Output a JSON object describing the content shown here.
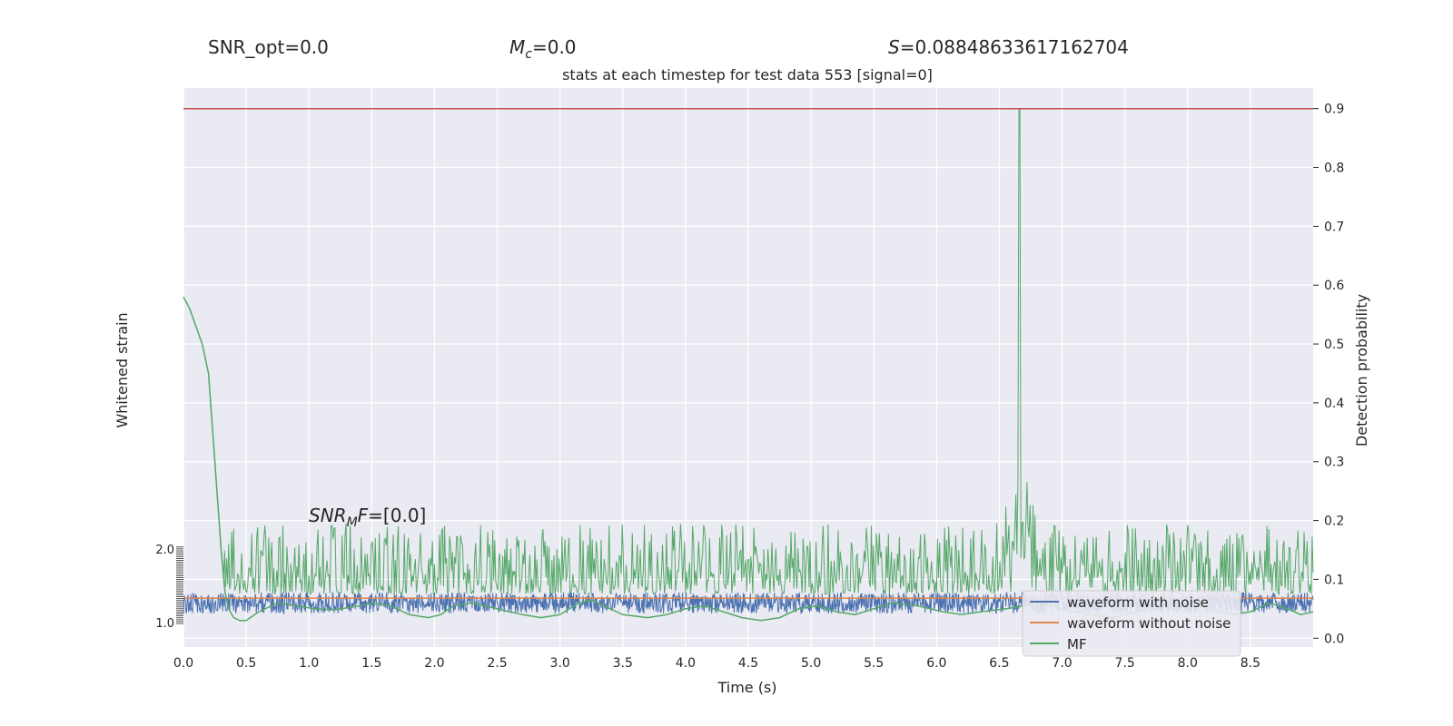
{
  "header": {
    "snr_opt": "SNR_opt=0.0",
    "mc_symbol": "M",
    "mc_sub": "c",
    "mc_value": "=0.0",
    "s_symbol": "S",
    "s_value": "=0.08848633617162704"
  },
  "colors": {
    "plot_bg": "#eaeaf2",
    "grid": "#ffffff",
    "noisy": "#4c72b0",
    "clean": "#dd8452",
    "mf": "#55a868",
    "threshold": "#c44e52",
    "text": "#262626"
  },
  "chart_data": {
    "type": "line",
    "title": "stats at each timestep for test data 553 [signal=0]",
    "xlabel": "Time (s)",
    "ylabel_left": "Whitened strain",
    "ylabel_right": "Detection probability",
    "xlim": [
      0.0,
      9.0
    ],
    "ylim_right": [
      -0.015,
      0.935
    ],
    "ylim_left_band": [
      -1.0,
      2.0
    ],
    "x_ticks": [
      "0.0",
      "0.5",
      "1.0",
      "1.5",
      "2.0",
      "2.5",
      "3.0",
      "3.5",
      "4.0",
      "4.5",
      "5.0",
      "5.5",
      "6.0",
      "6.5",
      "7.0",
      "7.5",
      "8.0",
      "8.5"
    ],
    "y_right_ticks": [
      "0.0",
      "0.1",
      "0.2",
      "0.3",
      "0.4",
      "0.5",
      "0.6",
      "0.7",
      "0.8",
      "0.9"
    ],
    "left_tick_labels": [
      "2.0",
      "1.0"
    ],
    "threshold": 0.9,
    "annotation": {
      "symbol": "SNR",
      "sub": "M",
      "tail": "F",
      "value": "=[0.0]"
    },
    "grid": true,
    "legend_position": "lower-right",
    "series": [
      {
        "name": "waveform with noise",
        "kind": "noise",
        "center": 0.06,
        "amplitude": 0.018,
        "sample_step": 0.004
      },
      {
        "name": "waveform without noise",
        "kind": "flat",
        "value": 0.068
      },
      {
        "name": "MF",
        "kind": "mf",
        "x": [
          0.0,
          0.05,
          0.1,
          0.15,
          0.2,
          0.25,
          0.3,
          0.33,
          0.36,
          0.4,
          0.45,
          0.5,
          0.6,
          0.75,
          0.9,
          1.05,
          1.2,
          1.4,
          1.5,
          1.65,
          1.8,
          1.95,
          2.05,
          2.15,
          2.3,
          2.5,
          2.7,
          2.85,
          3.0,
          3.15,
          3.25,
          3.35,
          3.5,
          3.7,
          3.85,
          4.0,
          4.15,
          4.3,
          4.45,
          4.6,
          4.75,
          4.9,
          5.05,
          5.2,
          5.35,
          5.5,
          5.65,
          5.85,
          6.05,
          6.2,
          6.35,
          6.55,
          6.7,
          6.85,
          7.0,
          7.2,
          7.4,
          7.6,
          7.8,
          8.0,
          8.15,
          8.35,
          8.5,
          8.65,
          8.8,
          8.9,
          9.0
        ],
        "y": [
          0.58,
          0.56,
          0.53,
          0.5,
          0.45,
          0.3,
          0.15,
          0.08,
          0.05,
          0.035,
          0.03,
          0.03,
          0.045,
          0.06,
          0.055,
          0.05,
          0.048,
          0.055,
          0.06,
          0.055,
          0.04,
          0.035,
          0.04,
          0.055,
          0.06,
          0.05,
          0.04,
          0.035,
          0.04,
          0.06,
          0.065,
          0.055,
          0.04,
          0.035,
          0.04,
          0.05,
          0.055,
          0.045,
          0.035,
          0.03,
          0.035,
          0.05,
          0.055,
          0.045,
          0.04,
          0.05,
          0.06,
          0.055,
          0.045,
          0.04,
          0.045,
          0.05,
          0.055,
          0.06,
          0.05,
          0.04,
          0.035,
          0.045,
          0.055,
          0.06,
          0.05,
          0.04,
          0.045,
          0.06,
          0.05,
          0.04,
          0.045
        ],
        "noise_base": 0.075,
        "noise_amp": 0.05,
        "spike_x": 6.66,
        "spike_peak": 0.9
      }
    ]
  }
}
